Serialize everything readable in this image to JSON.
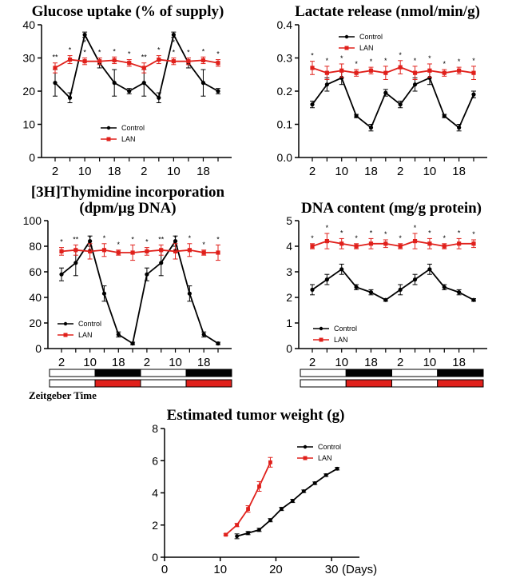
{
  "colors": {
    "control": "#000000",
    "lan": "#e0201b",
    "bar_dark": "#000000",
    "bar_light": "#ffffff"
  },
  "zeitgeber_label": "Zeitgeber Time",
  "days_label": "(Days)",
  "chart_data": [
    {
      "id": "glucose",
      "type": "line",
      "title": "Glucose uptake (% of supply)",
      "title2": "",
      "ylim": [
        0,
        40
      ],
      "yticks": [
        0,
        10,
        20,
        30,
        40
      ],
      "yticklabels": [
        "0",
        "10",
        "20",
        "30",
        "40"
      ],
      "xticklabels": [
        "2",
        "10",
        "18",
        "2",
        "10",
        "18"
      ],
      "legend": [
        "Control",
        "LAN"
      ],
      "legend_position": "center-bottom",
      "series": [
        {
          "name": "Control",
          "color": "#000000",
          "values": [
            22.5,
            18.0,
            37.0,
            28.5,
            22.5,
            20.0,
            22.5,
            18.0,
            37.0,
            28.5,
            22.5,
            20.0
          ],
          "errors": [
            4.0,
            1.5,
            0.8,
            1.5,
            4.0,
            0.8,
            4.0,
            1.5,
            0.8,
            1.5,
            4.0,
            0.8
          ]
        },
        {
          "name": "LAN",
          "color": "#e0201b",
          "values": [
            27.0,
            29.5,
            29.0,
            29.0,
            29.3,
            28.5,
            27.0,
            29.5,
            29.0,
            29.0,
            29.3,
            28.5
          ],
          "errors": [
            1.5,
            1.2,
            1.0,
            1.0,
            1.0,
            1.0,
            1.5,
            1.2,
            1.0,
            1.0,
            1.0,
            1.0
          ]
        }
      ],
      "annotations": [
        "**",
        "*",
        "*",
        "*",
        "*",
        "*",
        "**",
        "*",
        "*",
        "*",
        "*",
        "*"
      ],
      "annotations_below": [
        "",
        "",
        "*",
        "",
        "",
        "",
        "",
        "",
        "*",
        "",
        "",
        ""
      ]
    },
    {
      "id": "lactate",
      "type": "line",
      "title": "Lactate release (nmol/min/g)",
      "title2": "",
      "ylim": [
        0.0,
        0.4
      ],
      "yticks": [
        0.0,
        0.1,
        0.2,
        0.3,
        0.4
      ],
      "yticklabels": [
        "0.0",
        "0.1",
        "0.2",
        "0.3",
        "0.4"
      ],
      "xticklabels": [
        "2",
        "10",
        "18",
        "2",
        "10",
        "18"
      ],
      "legend": [
        "Control",
        "LAN"
      ],
      "legend_position": "top-center",
      "series": [
        {
          "name": "Control",
          "color": "#000000",
          "values": [
            0.16,
            0.22,
            0.24,
            0.125,
            0.09,
            0.195,
            0.16,
            0.22,
            0.24,
            0.125,
            0.09,
            0.19
          ],
          "errors": [
            0.01,
            0.02,
            0.02,
            0.005,
            0.01,
            0.01,
            0.01,
            0.02,
            0.02,
            0.005,
            0.01,
            0.01
          ]
        },
        {
          "name": "LAN",
          "color": "#e0201b",
          "values": [
            0.27,
            0.255,
            0.262,
            0.255,
            0.262,
            0.255,
            0.272,
            0.255,
            0.262,
            0.255,
            0.262,
            0.255
          ],
          "errors": [
            0.02,
            0.02,
            0.02,
            0.01,
            0.01,
            0.02,
            0.02,
            0.02,
            0.02,
            0.01,
            0.01,
            0.02
          ]
        }
      ],
      "annotations": [
        "*",
        "*",
        "*",
        "*",
        "*",
        "*",
        "*",
        "*",
        "*",
        "*",
        "*",
        "*"
      ],
      "annotations_below": [
        "",
        "",
        "",
        "",
        "",
        "",
        "",
        "",
        "",
        "",
        "",
        ""
      ]
    },
    {
      "id": "thymidine",
      "type": "line",
      "title": "[3H]Thymidine incorporation",
      "title2": "(dpm/µg DNA)",
      "ylim": [
        0,
        100
      ],
      "yticks": [
        0,
        20,
        40,
        60,
        80,
        100
      ],
      "yticklabels": [
        "0",
        "20",
        "40",
        "60",
        "80",
        "100"
      ],
      "xticklabels": [
        "2",
        "10",
        "18",
        "2",
        "10",
        "18"
      ],
      "legend": [
        "Control",
        "LAN"
      ],
      "legend_position": "bottom-left",
      "series": [
        {
          "name": "Control",
          "color": "#000000",
          "values": [
            58,
            67,
            84,
            43,
            11,
            4,
            58,
            67,
            84,
            43,
            11,
            4
          ],
          "errors": [
            5,
            10,
            4,
            6,
            2,
            1,
            5,
            10,
            4,
            6,
            2,
            1
          ]
        },
        {
          "name": "LAN",
          "color": "#e0201b",
          "values": [
            76,
            77,
            76,
            77,
            75,
            75,
            76,
            77,
            76,
            77,
            75,
            75
          ],
          "errors": [
            3,
            4,
            6,
            5,
            2,
            6,
            3,
            4,
            6,
            5,
            2,
            6
          ]
        }
      ],
      "annotations": [
        "*",
        "**",
        "*",
        "*",
        "*",
        "*",
        "*",
        "**",
        "*",
        "*",
        "*",
        "*"
      ],
      "annotations_below": [
        "",
        "",
        "*",
        "",
        "",
        "",
        "",
        "",
        "*",
        "",
        "",
        ""
      ]
    },
    {
      "id": "dna",
      "type": "line",
      "title": "DNA content (mg/g protein)",
      "title2": "",
      "ylim": [
        0,
        5
      ],
      "yticks": [
        0,
        1,
        2,
        3,
        4,
        5
      ],
      "yticklabels": [
        "0",
        "1",
        "2",
        "3",
        "4",
        "5"
      ],
      "xticklabels": [
        "2",
        "10",
        "18",
        "2",
        "10",
        "18"
      ],
      "legend": [
        "Control",
        "LAN"
      ],
      "legend_position": "bottom-center",
      "series": [
        {
          "name": "Control",
          "color": "#000000",
          "values": [
            2.3,
            2.7,
            3.1,
            2.4,
            2.2,
            1.9,
            2.3,
            2.7,
            3.1,
            2.4,
            2.2,
            1.9
          ],
          "errors": [
            0.2,
            0.2,
            0.2,
            0.1,
            0.1,
            0.05,
            0.2,
            0.2,
            0.2,
            0.1,
            0.1,
            0.05
          ]
        },
        {
          "name": "LAN",
          "color": "#e0201b",
          "values": [
            4.0,
            4.2,
            4.1,
            4.0,
            4.1,
            4.1,
            4.0,
            4.2,
            4.1,
            4.0,
            4.1,
            4.1
          ],
          "errors": [
            0.1,
            0.3,
            0.2,
            0.1,
            0.2,
            0.15,
            0.1,
            0.3,
            0.2,
            0.1,
            0.2,
            0.15
          ]
        }
      ],
      "annotations": [
        "*",
        "*",
        "*",
        "*",
        "*",
        "*",
        "*",
        "*",
        "*",
        "*",
        "*",
        "*"
      ],
      "annotations_below": [
        "",
        "",
        "",
        "",
        "",
        "",
        "",
        "",
        "",
        "",
        "",
        ""
      ]
    },
    {
      "id": "tumor",
      "type": "line",
      "title": "Estimated tumor weight (g)",
      "title2": "",
      "ylim": [
        0,
        8
      ],
      "yticks": [
        0,
        2,
        4,
        6,
        8
      ],
      "yticklabels": [
        "0",
        "2",
        "4",
        "6",
        "8"
      ],
      "xlim": [
        0,
        35
      ],
      "xticks": [
        0,
        10,
        20,
        30
      ],
      "xticklabels": [
        "0",
        "10",
        "20",
        "30"
      ],
      "legend": [
        "Control",
        "LAN"
      ],
      "legend_position": "top-right",
      "series": [
        {
          "name": "Control",
          "color": "#000000",
          "x": [
            13,
            15,
            17,
            19,
            21,
            23,
            25,
            27,
            29,
            31
          ],
          "values": [
            1.3,
            1.5,
            1.7,
            2.3,
            3.0,
            3.5,
            4.1,
            4.6,
            5.1,
            5.5
          ],
          "errors": [
            0.15,
            0.1,
            0.1,
            0.1,
            0.1,
            0.1,
            0.08,
            0.08,
            0.08,
            0.08
          ]
        },
        {
          "name": "LAN",
          "color": "#e0201b",
          "x": [
            11,
            13,
            15,
            17,
            19
          ],
          "values": [
            1.4,
            2.0,
            3.0,
            4.4,
            5.9
          ],
          "errors": [
            0.05,
            0.1,
            0.2,
            0.3,
            0.3
          ]
        }
      ]
    }
  ]
}
